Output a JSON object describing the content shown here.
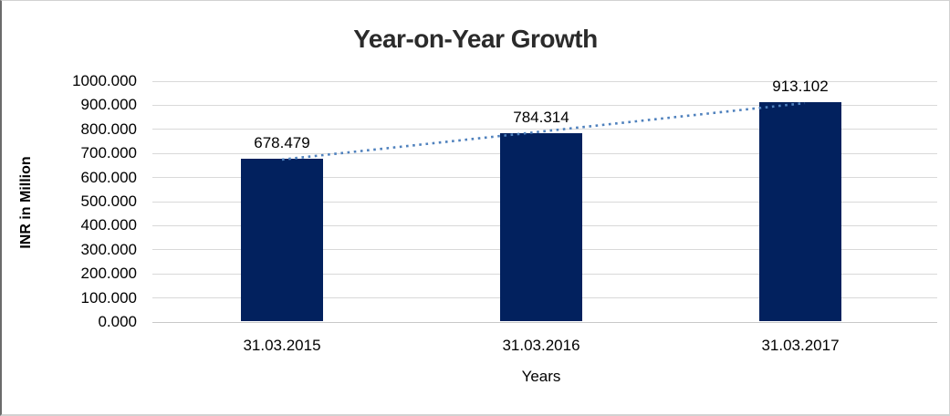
{
  "chart_data": {
    "type": "bar",
    "title": "Year-on-Year Growth",
    "xlabel": "Years",
    "ylabel": "INR in Million",
    "categories": [
      "31.03.2015",
      "31.03.2016",
      "31.03.2017"
    ],
    "values": [
      678.479,
      784.314,
      913.102
    ],
    "data_labels": [
      "678.479",
      "784.314",
      "913.102"
    ],
    "ylim": [
      0,
      1000
    ],
    "ytick_step": 100,
    "ytick_labels": [
      "0.000",
      "100.000",
      "200.000",
      "300.000",
      "400.000",
      "500.000",
      "600.000",
      "700.000",
      "800.000",
      "900.000",
      "1000.000"
    ],
    "grid": true,
    "legend": "none",
    "trendline": "linear-dotted",
    "colors": {
      "bar": "#02215e",
      "trend": "#4f81bd",
      "grid": "#d9d9d9",
      "axis": "#c8c8c8",
      "title_text": "#2b2b2b",
      "label_text": "#000000"
    }
  }
}
